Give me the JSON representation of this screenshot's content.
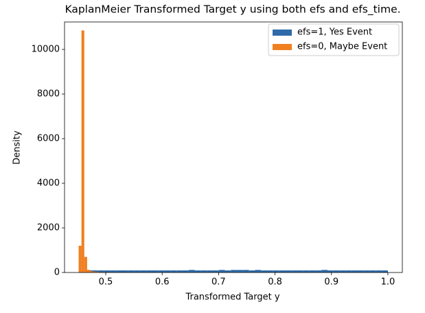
{
  "chart_data": {
    "type": "histogram",
    "title": "KaplanMeier Transformed Target y using both efs and efs_time.",
    "x_label": "Transformed Target y",
    "y_label": "Density",
    "xlim": [
      0.427,
      1.0256
    ],
    "ylim": [
      0,
      11231
    ],
    "xticks": [
      0.5,
      0.6,
      0.7,
      0.8,
      0.9,
      {
        "value": 1.0,
        "label": "1.0"
      }
    ],
    "yticks": [
      0,
      2000,
      4000,
      6000,
      8000,
      10000
    ],
    "legend": "upper right",
    "series": [
      {
        "name": "efs=1, Yes Event",
        "color": "#2f6aa8",
        "bins": [
          0.465,
          0.4757,
          0.4864,
          0.4971,
          0.5078,
          0.5185,
          0.5292,
          0.5399,
          0.5506,
          0.5613,
          0.572,
          0.5827,
          0.5934,
          0.6041,
          0.6148,
          0.6255,
          0.6362,
          0.6469,
          0.6576,
          0.6683,
          0.679,
          0.6897,
          0.7004,
          0.7111,
          0.7218,
          0.7325,
          0.7432,
          0.7539,
          0.7646,
          0.7753,
          0.786,
          0.7967,
          0.8074,
          0.8181,
          0.8288,
          0.8395,
          0.8502,
          0.8609,
          0.8716,
          0.8823,
          0.893,
          0.9037,
          0.9144,
          0.9251,
          0.9358,
          0.9465,
          0.9572,
          0.9679,
          0.9786,
          0.9893,
          1.0
        ],
        "values": [
          95,
          95,
          95,
          95,
          95,
          95,
          95,
          95,
          95,
          95,
          95,
          95,
          95,
          95,
          95,
          95,
          95,
          115,
          95,
          95,
          95,
          95,
          115,
          95,
          115,
          115,
          115,
          95,
          115,
          95,
          95,
          95,
          95,
          95,
          95,
          95,
          95,
          95,
          95,
          115,
          95,
          95,
          95,
          95,
          95,
          95,
          95,
          95,
          95,
          95
        ]
      },
      {
        "name": "efs=0, Maybe Event",
        "color": "#f07f20",
        "bins": [
          0.452,
          0.457,
          0.462,
          0.467,
          0.472,
          0.477,
          0.482,
          0.487,
          0.492,
          0.497,
          0.502,
          0.507,
          0.512,
          0.517,
          0.522,
          0.527,
          0.532
        ],
        "values": [
          1200,
          10850,
          700,
          120,
          60,
          40,
          30,
          20,
          15,
          10,
          8,
          5,
          5,
          3,
          2,
          1
        ]
      }
    ]
  }
}
